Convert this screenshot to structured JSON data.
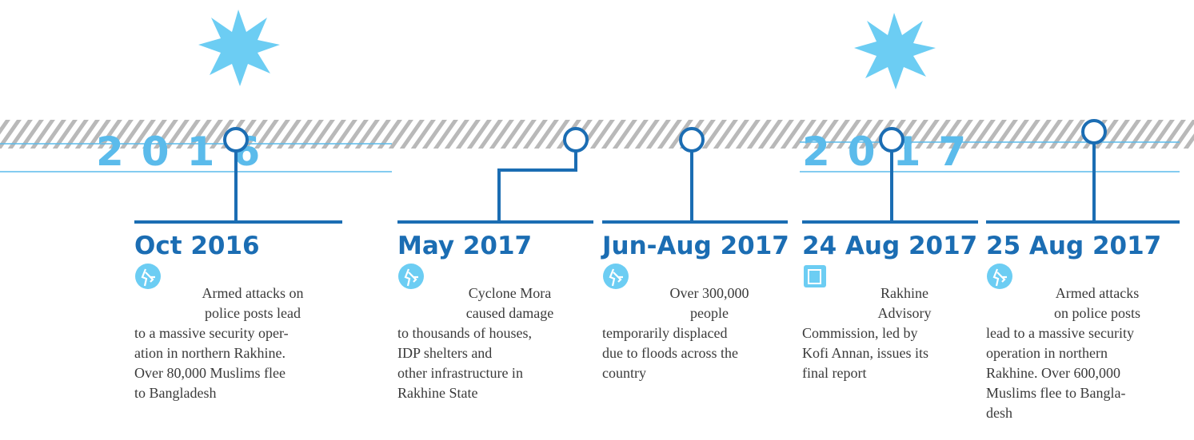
{
  "years": [
    "2016",
    "2017"
  ],
  "events": [
    {
      "date": "Oct 2016",
      "lines": [
        "Armed attacks on",
        "police posts lead",
        "to a massive security oper-",
        "ation in northern Rakhine.",
        "Over 80,000 Muslims flee",
        "to Bangladesh"
      ]
    },
    {
      "date": "May 2017",
      "lines": [
        "Cyclone Mora",
        "caused damage",
        "to thousands of houses,",
        "IDP shelters and",
        "other infrastructure in",
        "Rakhine State"
      ]
    },
    {
      "date": "Jun-Aug 2017",
      "lines": [
        "Over 300,000",
        "people",
        "temporarily displaced",
        "due to floods across the",
        "country"
      ]
    },
    {
      "date": "24 Aug 2017",
      "lines": [
        "Rakhine",
        "Advisory",
        "Commission, led by",
        "Kofi Annan, issues its",
        "final report"
      ]
    },
    {
      "date": "25 Aug 2017",
      "lines": [
        "Armed attacks",
        "on police posts",
        "lead to a massive security",
        "operation in northern",
        "Rakhine. Over 600,000",
        "Muslims flee to Bangla-",
        "desh"
      ]
    }
  ]
}
